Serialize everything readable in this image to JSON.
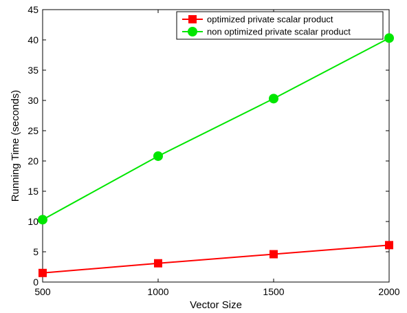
{
  "chart_data": {
    "type": "line",
    "title": "",
    "xlabel": "Vector Size",
    "ylabel": "Running Time (seconds)",
    "xlim": [
      500,
      2000
    ],
    "ylim": [
      0,
      45
    ],
    "xticks": [
      500,
      1000,
      1500,
      2000
    ],
    "yticks": [
      0,
      5,
      10,
      15,
      20,
      25,
      30,
      35,
      40,
      45
    ],
    "grid": false,
    "legend_position": "top-right",
    "series": [
      {
        "name": "optimized private scalar product",
        "color": "#ff0000",
        "marker": "square",
        "x": [
          500,
          1000,
          1500,
          2000
        ],
        "y": [
          1.5,
          3.1,
          4.6,
          6.1
        ]
      },
      {
        "name": "non optimized private scalar product",
        "color": "#00e600",
        "marker": "circle",
        "x": [
          500,
          1000,
          1500,
          2000
        ],
        "y": [
          10.3,
          20.8,
          30.3,
          40.3
        ]
      }
    ]
  }
}
